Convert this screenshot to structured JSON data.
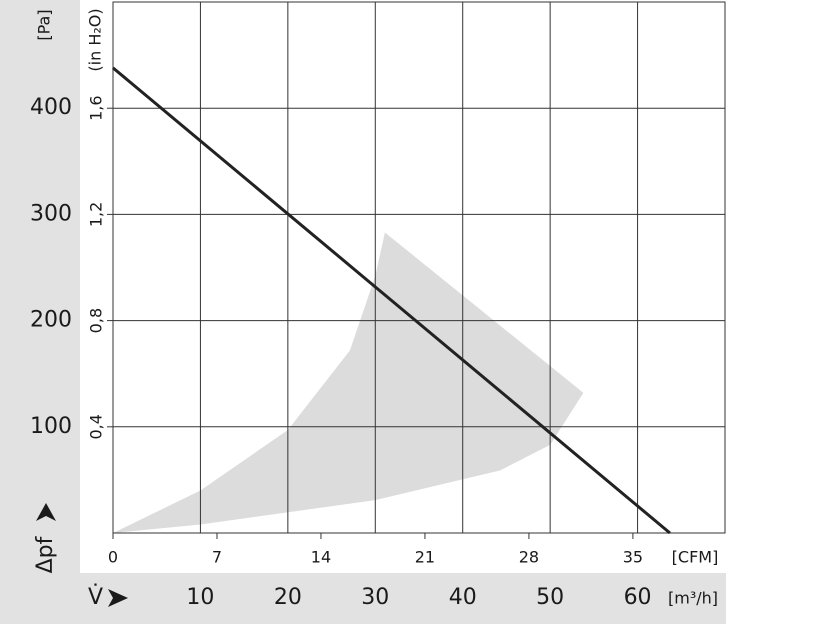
{
  "chart_data": {
    "type": "line",
    "y_label": "[Pa]",
    "y2_label": "(in H₂O)",
    "y_axis_symbol": "Δpf",
    "x_axis_symbol": "V̇",
    "x_unit": "[m³/h]",
    "x2_unit": "[CFM]",
    "xlim": [
      0,
      70
    ],
    "xticks": [
      10,
      20,
      30,
      40,
      50,
      60
    ],
    "ylim": [
      0,
      500
    ],
    "yticks": [
      100,
      200,
      300,
      400
    ],
    "x2lim": [
      0,
      41.2
    ],
    "x2ticks": [
      0,
      7,
      14,
      21,
      28,
      35
    ],
    "y2lim": [
      0,
      2.0
    ],
    "y2ticks": [
      {
        "value": 0.4,
        "label": "0,4"
      },
      {
        "value": 0.8,
        "label": "0,8"
      },
      {
        "value": 1.2,
        "label": "1,2"
      },
      {
        "value": 1.6,
        "label": "1,6"
      }
    ],
    "grid": true,
    "line": {
      "color": "#222222",
      "x": [
        0,
        63.7
      ],
      "values": [
        438,
        0
      ]
    },
    "shaded_region": {
      "color": "#dcdcdc",
      "x": [
        0,
        10,
        20,
        27.1,
        30,
        31.1,
        53.8,
        50,
        44.3,
        30,
        10,
        0
      ],
      "values": [
        0,
        40,
        97,
        172,
        242,
        283,
        132,
        83,
        59,
        31,
        8,
        0
      ]
    }
  }
}
